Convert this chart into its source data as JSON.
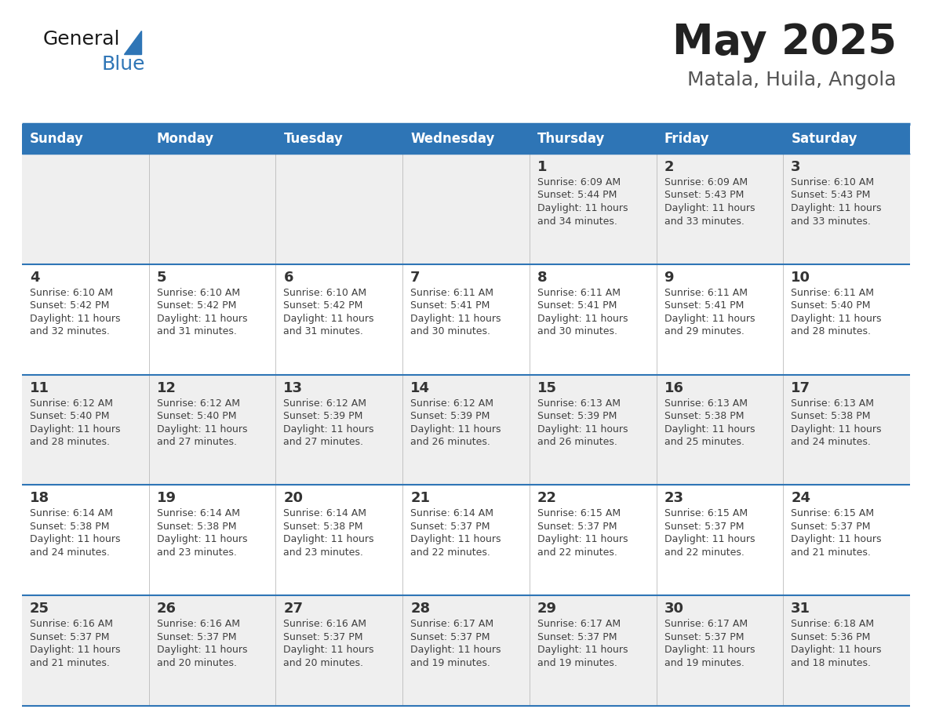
{
  "title": "May 2025",
  "subtitle": "Matala, Huila, Angola",
  "days_of_week": [
    "Sunday",
    "Monday",
    "Tuesday",
    "Wednesday",
    "Thursday",
    "Friday",
    "Saturday"
  ],
  "header_bg": "#2E75B6",
  "header_text": "#FFFFFF",
  "row_bg_even": "#EFEFEF",
  "row_bg_odd": "#FFFFFF",
  "cell_text_color": "#404040",
  "day_number_color": "#333333",
  "grid_line_color": "#2E75B6",
  "title_color": "#222222",
  "subtitle_color": "#555555",
  "logo_general_color": "#1a1a1a",
  "logo_blue_color": "#2E75B6",
  "logo_triangle_color": "#2E75B6",
  "calendar": [
    [
      {
        "day": "",
        "sunrise": "",
        "sunset": "",
        "daylight": ""
      },
      {
        "day": "",
        "sunrise": "",
        "sunset": "",
        "daylight": ""
      },
      {
        "day": "",
        "sunrise": "",
        "sunset": "",
        "daylight": ""
      },
      {
        "day": "",
        "sunrise": "",
        "sunset": "",
        "daylight": ""
      },
      {
        "day": "1",
        "sunrise": "6:09 AM",
        "sunset": "5:44 PM",
        "daylight": "11 hours and 34 minutes."
      },
      {
        "day": "2",
        "sunrise": "6:09 AM",
        "sunset": "5:43 PM",
        "daylight": "11 hours and 33 minutes."
      },
      {
        "day": "3",
        "sunrise": "6:10 AM",
        "sunset": "5:43 PM",
        "daylight": "11 hours and 33 minutes."
      }
    ],
    [
      {
        "day": "4",
        "sunrise": "6:10 AM",
        "sunset": "5:42 PM",
        "daylight": "11 hours and 32 minutes."
      },
      {
        "day": "5",
        "sunrise": "6:10 AM",
        "sunset": "5:42 PM",
        "daylight": "11 hours and 31 minutes."
      },
      {
        "day": "6",
        "sunrise": "6:10 AM",
        "sunset": "5:42 PM",
        "daylight": "11 hours and 31 minutes."
      },
      {
        "day": "7",
        "sunrise": "6:11 AM",
        "sunset": "5:41 PM",
        "daylight": "11 hours and 30 minutes."
      },
      {
        "day": "8",
        "sunrise": "6:11 AM",
        "sunset": "5:41 PM",
        "daylight": "11 hours and 30 minutes."
      },
      {
        "day": "9",
        "sunrise": "6:11 AM",
        "sunset": "5:41 PM",
        "daylight": "11 hours and 29 minutes."
      },
      {
        "day": "10",
        "sunrise": "6:11 AM",
        "sunset": "5:40 PM",
        "daylight": "11 hours and 28 minutes."
      }
    ],
    [
      {
        "day": "11",
        "sunrise": "6:12 AM",
        "sunset": "5:40 PM",
        "daylight": "11 hours and 28 minutes."
      },
      {
        "day": "12",
        "sunrise": "6:12 AM",
        "sunset": "5:40 PM",
        "daylight": "11 hours and 27 minutes."
      },
      {
        "day": "13",
        "sunrise": "6:12 AM",
        "sunset": "5:39 PM",
        "daylight": "11 hours and 27 minutes."
      },
      {
        "day": "14",
        "sunrise": "6:12 AM",
        "sunset": "5:39 PM",
        "daylight": "11 hours and 26 minutes."
      },
      {
        "day": "15",
        "sunrise": "6:13 AM",
        "sunset": "5:39 PM",
        "daylight": "11 hours and 26 minutes."
      },
      {
        "day": "16",
        "sunrise": "6:13 AM",
        "sunset": "5:38 PM",
        "daylight": "11 hours and 25 minutes."
      },
      {
        "day": "17",
        "sunrise": "6:13 AM",
        "sunset": "5:38 PM",
        "daylight": "11 hours and 24 minutes."
      }
    ],
    [
      {
        "day": "18",
        "sunrise": "6:14 AM",
        "sunset": "5:38 PM",
        "daylight": "11 hours and 24 minutes."
      },
      {
        "day": "19",
        "sunrise": "6:14 AM",
        "sunset": "5:38 PM",
        "daylight": "11 hours and 23 minutes."
      },
      {
        "day": "20",
        "sunrise": "6:14 AM",
        "sunset": "5:38 PM",
        "daylight": "11 hours and 23 minutes."
      },
      {
        "day": "21",
        "sunrise": "6:14 AM",
        "sunset": "5:37 PM",
        "daylight": "11 hours and 22 minutes."
      },
      {
        "day": "22",
        "sunrise": "6:15 AM",
        "sunset": "5:37 PM",
        "daylight": "11 hours and 22 minutes."
      },
      {
        "day": "23",
        "sunrise": "6:15 AM",
        "sunset": "5:37 PM",
        "daylight": "11 hours and 22 minutes."
      },
      {
        "day": "24",
        "sunrise": "6:15 AM",
        "sunset": "5:37 PM",
        "daylight": "11 hours and 21 minutes."
      }
    ],
    [
      {
        "day": "25",
        "sunrise": "6:16 AM",
        "sunset": "5:37 PM",
        "daylight": "11 hours and 21 minutes."
      },
      {
        "day": "26",
        "sunrise": "6:16 AM",
        "sunset": "5:37 PM",
        "daylight": "11 hours and 20 minutes."
      },
      {
        "day": "27",
        "sunrise": "6:16 AM",
        "sunset": "5:37 PM",
        "daylight": "11 hours and 20 minutes."
      },
      {
        "day": "28",
        "sunrise": "6:17 AM",
        "sunset": "5:37 PM",
        "daylight": "11 hours and 19 minutes."
      },
      {
        "day": "29",
        "sunrise": "6:17 AM",
        "sunset": "5:37 PM",
        "daylight": "11 hours and 19 minutes."
      },
      {
        "day": "30",
        "sunrise": "6:17 AM",
        "sunset": "5:37 PM",
        "daylight": "11 hours and 19 minutes."
      },
      {
        "day": "31",
        "sunrise": "6:18 AM",
        "sunset": "5:36 PM",
        "daylight": "11 hours and 18 minutes."
      }
    ]
  ]
}
